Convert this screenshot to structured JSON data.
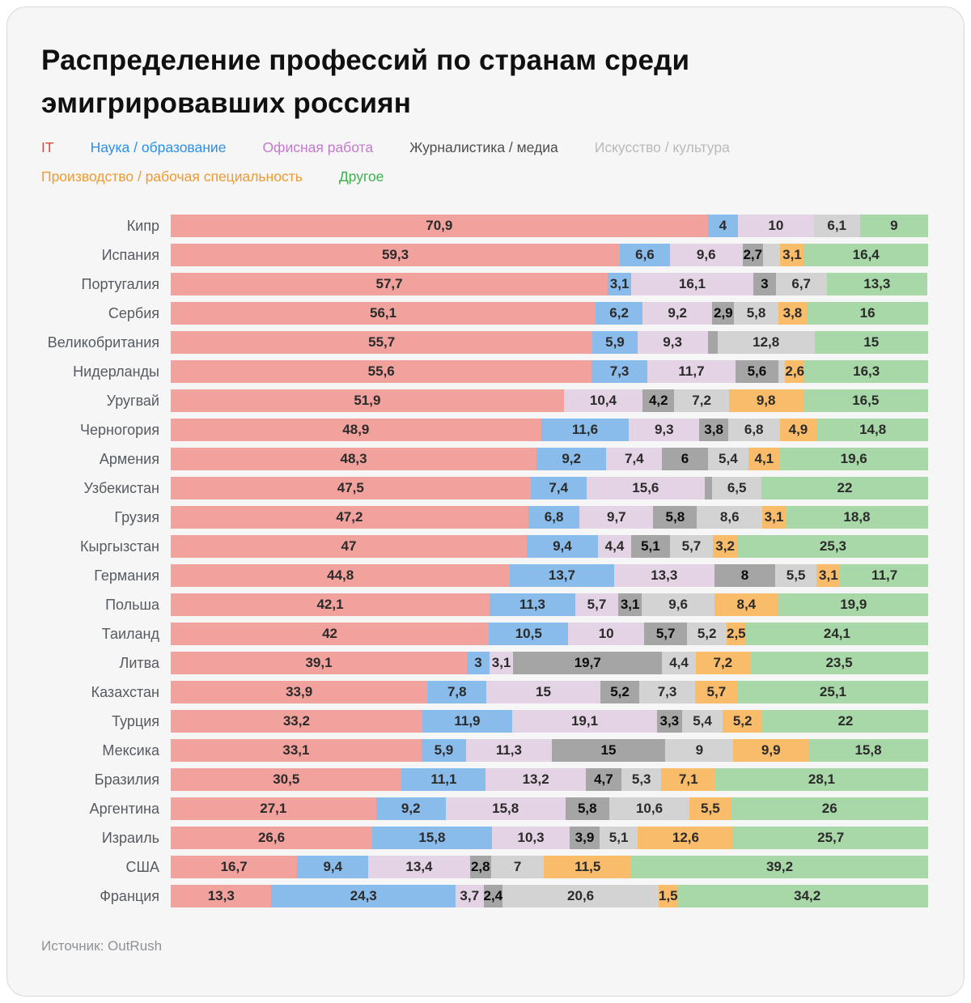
{
  "page": {
    "title": "Распределение профессий по странам среди\nэмигрировавших россиян",
    "source": "Источник: OutRush"
  },
  "categories": {
    "it": {
      "label": "IT",
      "bar_color": "#F2A29C",
      "legend_color": "#E2443C"
    },
    "science": {
      "label": "Наука / образование",
      "bar_color": "#89BCEA",
      "legend_color": "#2D8FE8"
    },
    "office": {
      "label": "Офисная работа",
      "bar_color": "#E4D3E4",
      "legend_color": "#C579CE"
    },
    "journalism": {
      "label": "Журналистика / медиа",
      "bar_color": "#A5A5A5",
      "legend_color": "#4D4D4D"
    },
    "art": {
      "label": "Искусство / культура",
      "bar_color": "#D3D3D3",
      "legend_color": "#B9B9B9"
    },
    "manufacturing": {
      "label": "Производство / рабочая специальность",
      "bar_color": "#F8BC6B",
      "legend_color": "#F0992E"
    },
    "other": {
      "label": "Другое",
      "bar_color": "#A8D8A8",
      "legend_color": "#3FAE4F"
    }
  },
  "legend_order": [
    "it",
    "science",
    "office",
    "journalism",
    "art",
    "manufacturing",
    "other"
  ],
  "chart_data": {
    "type": "bar",
    "stacked": true,
    "orientation": "horizontal",
    "unit": "%",
    "xlim": [
      0,
      100
    ],
    "grid": false,
    "series_names": [
      "IT",
      "Наука / образование",
      "Офисная работа",
      "Журналистика / медиа",
      "Искусство / культура",
      "Производство / рабочая специальность",
      "Другое"
    ],
    "rows": [
      {
        "country": "Кипр",
        "segments": [
          {
            "c": "it",
            "v": 70.9,
            "t": "70,9"
          },
          {
            "c": "science",
            "v": 4,
            "t": "4"
          },
          {
            "c": "office",
            "v": 10,
            "t": "10"
          },
          {
            "c": "art",
            "v": 6.1,
            "t": "6,1"
          },
          {
            "c": "other",
            "v": 9,
            "t": "9"
          }
        ]
      },
      {
        "country": "Испания",
        "segments": [
          {
            "c": "it",
            "v": 59.3,
            "t": "59,3"
          },
          {
            "c": "science",
            "v": 6.6,
            "t": "6,6"
          },
          {
            "c": "office",
            "v": 9.6,
            "t": "9,6"
          },
          {
            "c": "journalism",
            "v": 2.7,
            "t": "2,7"
          },
          {
            "c": "art",
            "v": 2.3,
            "t": ""
          },
          {
            "c": "manufacturing",
            "v": 3.1,
            "t": "3,1"
          },
          {
            "c": "other",
            "v": 16.4,
            "t": "16,4"
          }
        ]
      },
      {
        "country": "Португалия",
        "segments": [
          {
            "c": "it",
            "v": 57.7,
            "t": "57,7"
          },
          {
            "c": "science",
            "v": 3.1,
            "t": "3,1"
          },
          {
            "c": "office",
            "v": 16.1,
            "t": "16,1"
          },
          {
            "c": "journalism",
            "v": 3,
            "t": "3"
          },
          {
            "c": "art",
            "v": 6.7,
            "t": "6,7"
          },
          {
            "c": "other",
            "v": 13.3,
            "t": "13,3"
          }
        ]
      },
      {
        "country": "Сербия",
        "segments": [
          {
            "c": "it",
            "v": 56.1,
            "t": "56,1"
          },
          {
            "c": "science",
            "v": 6.2,
            "t": "6,2"
          },
          {
            "c": "office",
            "v": 9.2,
            "t": "9,2"
          },
          {
            "c": "journalism",
            "v": 2.9,
            "t": "2,9"
          },
          {
            "c": "art",
            "v": 5.8,
            "t": "5,8"
          },
          {
            "c": "manufacturing",
            "v": 3.8,
            "t": "3,8"
          },
          {
            "c": "other",
            "v": 16,
            "t": "16"
          }
        ]
      },
      {
        "country": "Великобритания",
        "segments": [
          {
            "c": "it",
            "v": 55.7,
            "t": "55,7"
          },
          {
            "c": "science",
            "v": 5.9,
            "t": "5,9"
          },
          {
            "c": "office",
            "v": 9.3,
            "t": "9,3"
          },
          {
            "c": "journalism",
            "v": 1.3,
            "t": ""
          },
          {
            "c": "art",
            "v": 12.8,
            "t": "12,8"
          },
          {
            "c": "other",
            "v": 15,
            "t": "15"
          }
        ]
      },
      {
        "country": "Нидерланды",
        "segments": [
          {
            "c": "it",
            "v": 55.6,
            "t": "55,6"
          },
          {
            "c": "science",
            "v": 7.3,
            "t": "7,3"
          },
          {
            "c": "office",
            "v": 11.7,
            "t": "11,7"
          },
          {
            "c": "journalism",
            "v": 5.6,
            "t": "5,6"
          },
          {
            "c": "art",
            "v": 0.9,
            "t": ""
          },
          {
            "c": "manufacturing",
            "v": 2.6,
            "t": "2,6"
          },
          {
            "c": "other",
            "v": 16.3,
            "t": "16,3"
          }
        ]
      },
      {
        "country": "Уругвай",
        "segments": [
          {
            "c": "it",
            "v": 51.9,
            "t": "51,9"
          },
          {
            "c": "office",
            "v": 10.4,
            "t": "10,4"
          },
          {
            "c": "journalism",
            "v": 4.2,
            "t": "4,2"
          },
          {
            "c": "art",
            "v": 7.2,
            "t": "7,2"
          },
          {
            "c": "manufacturing",
            "v": 9.8,
            "t": "9,8"
          },
          {
            "c": "other",
            "v": 16.5,
            "t": "16,5"
          }
        ]
      },
      {
        "country": "Черногория",
        "segments": [
          {
            "c": "it",
            "v": 48.9,
            "t": "48,9"
          },
          {
            "c": "science",
            "v": 11.6,
            "t": "11,6"
          },
          {
            "c": "office",
            "v": 9.3,
            "t": "9,3"
          },
          {
            "c": "journalism",
            "v": 3.8,
            "t": "3,8"
          },
          {
            "c": "art",
            "v": 6.8,
            "t": "6,8"
          },
          {
            "c": "manufacturing",
            "v": 4.9,
            "t": "4,9"
          },
          {
            "c": "other",
            "v": 14.8,
            "t": "14,8"
          }
        ]
      },
      {
        "country": "Армения",
        "segments": [
          {
            "c": "it",
            "v": 48.3,
            "t": "48,3"
          },
          {
            "c": "science",
            "v": 9.2,
            "t": "9,2"
          },
          {
            "c": "office",
            "v": 7.4,
            "t": "7,4"
          },
          {
            "c": "journalism",
            "v": 6,
            "t": "6"
          },
          {
            "c": "art",
            "v": 5.4,
            "t": "5,4"
          },
          {
            "c": "manufacturing",
            "v": 4.1,
            "t": "4,1"
          },
          {
            "c": "other",
            "v": 19.6,
            "t": "19,6"
          }
        ]
      },
      {
        "country": "Узбекистан",
        "segments": [
          {
            "c": "it",
            "v": 47.5,
            "t": "47,5"
          },
          {
            "c": "science",
            "v": 7.4,
            "t": "7,4"
          },
          {
            "c": "office",
            "v": 15.6,
            "t": "15,6"
          },
          {
            "c": "journalism",
            "v": 1,
            "t": ""
          },
          {
            "c": "art",
            "v": 6.5,
            "t": "6,5"
          },
          {
            "c": "other",
            "v": 22,
            "t": "22"
          }
        ]
      },
      {
        "country": "Грузия",
        "segments": [
          {
            "c": "it",
            "v": 47.2,
            "t": "47,2"
          },
          {
            "c": "science",
            "v": 6.8,
            "t": "6,8"
          },
          {
            "c": "office",
            "v": 9.7,
            "t": "9,7"
          },
          {
            "c": "journalism",
            "v": 5.8,
            "t": "5,8"
          },
          {
            "c": "art",
            "v": 8.6,
            "t": "8,6"
          },
          {
            "c": "manufacturing",
            "v": 3.1,
            "t": "3,1"
          },
          {
            "c": "other",
            "v": 18.8,
            "t": "18,8"
          }
        ]
      },
      {
        "country": "Кыргызстан",
        "segments": [
          {
            "c": "it",
            "v": 47,
            "t": "47"
          },
          {
            "c": "science",
            "v": 9.4,
            "t": "9,4"
          },
          {
            "c": "office",
            "v": 4.4,
            "t": "4,4"
          },
          {
            "c": "journalism",
            "v": 5.1,
            "t": "5,1"
          },
          {
            "c": "art",
            "v": 5.7,
            "t": "5,7"
          },
          {
            "c": "manufacturing",
            "v": 3.2,
            "t": "3,2"
          },
          {
            "c": "other",
            "v": 25.3,
            "t": "25,3"
          }
        ]
      },
      {
        "country": "Германия",
        "segments": [
          {
            "c": "it",
            "v": 44.8,
            "t": "44,8"
          },
          {
            "c": "science",
            "v": 13.7,
            "t": "13,7"
          },
          {
            "c": "office",
            "v": 13.3,
            "t": "13,3"
          },
          {
            "c": "journalism",
            "v": 8,
            "t": "8"
          },
          {
            "c": "art",
            "v": 5.5,
            "t": "5,5"
          },
          {
            "c": "manufacturing",
            "v": 3.1,
            "t": "3,1"
          },
          {
            "c": "other",
            "v": 11.7,
            "t": "11,7"
          }
        ]
      },
      {
        "country": "Польша",
        "segments": [
          {
            "c": "it",
            "v": 42.1,
            "t": "42,1"
          },
          {
            "c": "science",
            "v": 11.3,
            "t": "11,3"
          },
          {
            "c": "office",
            "v": 5.7,
            "t": "5,7"
          },
          {
            "c": "journalism",
            "v": 3.1,
            "t": "3,1"
          },
          {
            "c": "art",
            "v": 9.6,
            "t": "9,6"
          },
          {
            "c": "manufacturing",
            "v": 8.4,
            "t": "8,4"
          },
          {
            "c": "other",
            "v": 19.9,
            "t": "19,9"
          }
        ]
      },
      {
        "country": "Таиланд",
        "segments": [
          {
            "c": "it",
            "v": 42,
            "t": "42"
          },
          {
            "c": "science",
            "v": 10.5,
            "t": "10,5"
          },
          {
            "c": "office",
            "v": 10,
            "t": "10"
          },
          {
            "c": "journalism",
            "v": 5.7,
            "t": "5,7"
          },
          {
            "c": "art",
            "v": 5.2,
            "t": "5,2"
          },
          {
            "c": "manufacturing",
            "v": 2.5,
            "t": "2,5"
          },
          {
            "c": "other",
            "v": 24.1,
            "t": "24,1"
          }
        ]
      },
      {
        "country": "Литва",
        "segments": [
          {
            "c": "it",
            "v": 39.1,
            "t": "39,1"
          },
          {
            "c": "science",
            "v": 3,
            "t": "3"
          },
          {
            "c": "office",
            "v": 3.1,
            "t": "3,1"
          },
          {
            "c": "journalism",
            "v": 19.7,
            "t": "19,7"
          },
          {
            "c": "art",
            "v": 4.4,
            "t": "4,4"
          },
          {
            "c": "manufacturing",
            "v": 7.2,
            "t": "7,2"
          },
          {
            "c": "other",
            "v": 23.5,
            "t": "23,5"
          }
        ]
      },
      {
        "country": "Казахстан",
        "segments": [
          {
            "c": "it",
            "v": 33.9,
            "t": "33,9"
          },
          {
            "c": "science",
            "v": 7.8,
            "t": "7,8"
          },
          {
            "c": "office",
            "v": 15,
            "t": "15"
          },
          {
            "c": "journalism",
            "v": 5.2,
            "t": "5,2"
          },
          {
            "c": "art",
            "v": 7.3,
            "t": "7,3"
          },
          {
            "c": "manufacturing",
            "v": 5.7,
            "t": "5,7"
          },
          {
            "c": "other",
            "v": 25.1,
            "t": "25,1"
          }
        ]
      },
      {
        "country": "Турция",
        "segments": [
          {
            "c": "it",
            "v": 33.2,
            "t": "33,2"
          },
          {
            "c": "science",
            "v": 11.9,
            "t": "11,9"
          },
          {
            "c": "office",
            "v": 19.1,
            "t": "19,1"
          },
          {
            "c": "journalism",
            "v": 3.3,
            "t": "3,3"
          },
          {
            "c": "art",
            "v": 5.4,
            "t": "5,4"
          },
          {
            "c": "manufacturing",
            "v": 5.2,
            "t": "5,2"
          },
          {
            "c": "other",
            "v": 22,
            "t": "22"
          }
        ]
      },
      {
        "country": "Мексика",
        "segments": [
          {
            "c": "it",
            "v": 33.1,
            "t": "33,1"
          },
          {
            "c": "science",
            "v": 5.9,
            "t": "5,9"
          },
          {
            "c": "office",
            "v": 11.3,
            "t": "11,3"
          },
          {
            "c": "journalism",
            "v": 15,
            "t": "15"
          },
          {
            "c": "art",
            "v": 9,
            "t": "9"
          },
          {
            "c": "manufacturing",
            "v": 9.9,
            "t": "9,9"
          },
          {
            "c": "other",
            "v": 15.8,
            "t": "15,8"
          }
        ]
      },
      {
        "country": "Бразилия",
        "segments": [
          {
            "c": "it",
            "v": 30.5,
            "t": "30,5"
          },
          {
            "c": "science",
            "v": 11.1,
            "t": "11,1"
          },
          {
            "c": "office",
            "v": 13.2,
            "t": "13,2"
          },
          {
            "c": "journalism",
            "v": 4.7,
            "t": "4,7"
          },
          {
            "c": "art",
            "v": 5.3,
            "t": "5,3"
          },
          {
            "c": "manufacturing",
            "v": 7.1,
            "t": "7,1"
          },
          {
            "c": "other",
            "v": 28.1,
            "t": "28,1"
          }
        ]
      },
      {
        "country": "Аргентина",
        "segments": [
          {
            "c": "it",
            "v": 27.1,
            "t": "27,1"
          },
          {
            "c": "science",
            "v": 9.2,
            "t": "9,2"
          },
          {
            "c": "office",
            "v": 15.8,
            "t": "15,8"
          },
          {
            "c": "journalism",
            "v": 5.8,
            "t": "5,8"
          },
          {
            "c": "art",
            "v": 10.6,
            "t": "10,6"
          },
          {
            "c": "manufacturing",
            "v": 5.5,
            "t": "5,5"
          },
          {
            "c": "other",
            "v": 26,
            "t": "26"
          }
        ]
      },
      {
        "country": "Израиль",
        "segments": [
          {
            "c": "it",
            "v": 26.6,
            "t": "26,6"
          },
          {
            "c": "science",
            "v": 15.8,
            "t": "15,8"
          },
          {
            "c": "office",
            "v": 10.3,
            "t": "10,3"
          },
          {
            "c": "journalism",
            "v": 3.9,
            "t": "3,9"
          },
          {
            "c": "art",
            "v": 5.1,
            "t": "5,1"
          },
          {
            "c": "manufacturing",
            "v": 12.6,
            "t": "12,6"
          },
          {
            "c": "other",
            "v": 25.7,
            "t": "25,7"
          }
        ]
      },
      {
        "country": "США",
        "segments": [
          {
            "c": "it",
            "v": 16.7,
            "t": "16,7"
          },
          {
            "c": "science",
            "v": 9.4,
            "t": "9,4"
          },
          {
            "c": "office",
            "v": 13.4,
            "t": "13,4"
          },
          {
            "c": "journalism",
            "v": 2.8,
            "t": "2,8"
          },
          {
            "c": "art",
            "v": 7,
            "t": "7"
          },
          {
            "c": "manufacturing",
            "v": 11.5,
            "t": "11,5"
          },
          {
            "c": "other",
            "v": 39.2,
            "t": "39,2"
          }
        ]
      },
      {
        "country": "Франция",
        "segments": [
          {
            "c": "it",
            "v": 13.3,
            "t": "13,3"
          },
          {
            "c": "science",
            "v": 24.3,
            "t": "24,3"
          },
          {
            "c": "office",
            "v": 3.7,
            "t": "3,7"
          },
          {
            "c": "journalism",
            "v": 2.4,
            "t": "2,4"
          },
          {
            "c": "art",
            "v": 20.6,
            "t": "20,6"
          },
          {
            "c": "manufacturing",
            "v": 1.5,
            "t": "1,5"
          },
          {
            "c": "other",
            "v": 34.2,
            "t": "34,2"
          }
        ]
      }
    ]
  }
}
